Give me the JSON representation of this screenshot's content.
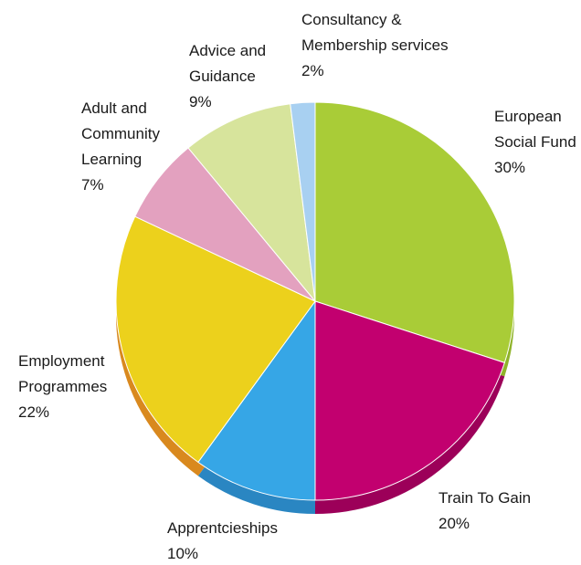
{
  "chart_data": {
    "type": "pie",
    "title": "",
    "legend": "none",
    "slices": [
      {
        "label_lines": [
          "European",
          "Social Fund"
        ],
        "value_label": "30%",
        "value": 30,
        "color": "#a9cc37",
        "side_color": "#8fb32a"
      },
      {
        "label_lines": [
          "Train To Gain"
        ],
        "value_label": "20%",
        "value": 20,
        "color": "#c2006f",
        "side_color": "#9c0059"
      },
      {
        "label_lines": [
          "Apprentcieships"
        ],
        "value_label": "10%",
        "value": 10,
        "color": "#36a6e6",
        "side_color": "#2a86c2"
      },
      {
        "label_lines": [
          "Employment",
          "Programmes"
        ],
        "value_label": "22%",
        "value": 22,
        "color": "#ecd11c",
        "side_color": "#d9891e"
      },
      {
        "label_lines": [
          "Adult and",
          "Community",
          "Learning"
        ],
        "value_label": "7%",
        "value": 7,
        "color": "#e3a1bf",
        "side_color": "#c984a5"
      },
      {
        "label_lines": [
          "Advice and",
          "Guidance"
        ],
        "value_label": "9%",
        "value": 9,
        "color": "#d7e49c",
        "side_color": "#bccb7d"
      },
      {
        "label_lines": [
          "Consultancy &",
          "Membership services"
        ],
        "value_label": "2%",
        "value": 2,
        "color": "#a8d0f1",
        "side_color": "#85b3da"
      }
    ]
  }
}
